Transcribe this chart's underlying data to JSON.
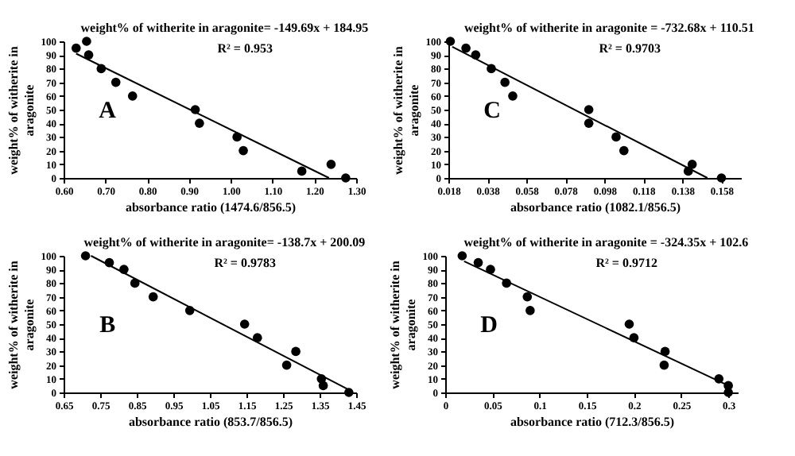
{
  "chart_data": [
    {
      "type": "scatter",
      "xlabel": "absorbance ratio (1474.6/856.5)",
      "ylabel": "weight% of witherite in aragonite",
      "xlim": [
        0.6,
        1.3
      ],
      "xticks": [
        {
          "value": 0.6,
          "label": "0.60"
        },
        {
          "value": 0.7,
          "label": "0.70"
        },
        {
          "value": 0.8,
          "label": "0.80"
        },
        {
          "value": 0.9,
          "label": "0.90"
        },
        {
          "value": 1.0,
          "label": "1.00"
        },
        {
          "value": 1.1,
          "label": "1.10"
        },
        {
          "value": 1.2,
          "label": "1.20"
        },
        {
          "value": 1.3,
          "label": "1.30"
        }
      ],
      "ylim": [
        0,
        100
      ],
      "yticks": [
        0,
        10,
        20,
        30,
        40,
        50,
        60,
        70,
        80,
        90,
        100
      ],
      "annotations": [
        "weight% of witherite in aragonite= -149.69x + 184.95",
        "R² = 0.953",
        "A"
      ],
      "series": [
        {
          "marker": "circle",
          "color": "#000000",
          "x": [
            0.63,
            0.655,
            0.66,
            0.69,
            0.725,
            0.765,
            0.915,
            0.925,
            1.015,
            1.03,
            1.17,
            1.24,
            1.275
          ],
          "values": [
            95,
            100,
            90,
            80,
            70,
            60,
            50,
            40,
            30,
            20,
            5,
            10,
            0
          ]
        },
        {
          "type": "line",
          "marker": "none",
          "color": "#000000",
          "x": [
            0.63,
            1.235
          ],
          "values": [
            91,
            0
          ]
        }
      ]
    },
    {
      "type": "scatter",
      "xlabel": "absorbance ratio (1082.1/856.5)",
      "ylabel": "weight% of witherite in aragonite",
      "xlim": [
        0.018,
        0.168
      ],
      "xticks": [
        0.018,
        0.038,
        0.058,
        0.078,
        0.098,
        0.118,
        0.138,
        0.158
      ],
      "ylim": [
        0,
        100
      ],
      "yticks": [
        0,
        10,
        20,
        30,
        40,
        50,
        60,
        70,
        80,
        90,
        100
      ],
      "annotations": [
        "weight% of witherite in aragonite = -732.68x + 110.51",
        "R² = 0.9703",
        "C"
      ],
      "series": [
        {
          "marker": "circle",
          "color": "#000000",
          "x": [
            0.019,
            0.027,
            0.032,
            0.04,
            0.047,
            0.051,
            0.09,
            0.09,
            0.104,
            0.108,
            0.141,
            0.143,
            0.158
          ],
          "values": [
            100,
            95,
            90,
            80,
            70,
            60,
            50,
            40,
            30,
            20,
            5,
            10,
            0
          ]
        },
        {
          "type": "line",
          "marker": "none",
          "color": "#000000",
          "x": [
            0.02,
            0.1508
          ],
          "values": [
            96,
            0
          ]
        }
      ]
    },
    {
      "type": "scatter",
      "xlabel": "absorbance ratio (853.7/856.5)",
      "ylabel": "weight% of witherite in aragonite",
      "xlim": [
        0.65,
        1.45
      ],
      "xticks": [
        0.65,
        0.75,
        0.85,
        0.95,
        1.05,
        1.15,
        1.25,
        1.35,
        1.45
      ],
      "ylim": [
        0,
        100
      ],
      "yticks": [
        0,
        10,
        20,
        30,
        40,
        50,
        60,
        70,
        80,
        90,
        100
      ],
      "annotations": [
        "weight% of witherite in aragonite= -138.7x + 200.09",
        "R² = 0.9783",
        "B"
      ],
      "series": [
        {
          "marker": "circle",
          "color": "#000000",
          "x": [
            0.71,
            0.775,
            0.815,
            0.845,
            0.895,
            0.995,
            1.145,
            1.18,
            1.26,
            1.285,
            1.355,
            1.36,
            1.43
          ],
          "values": [
            100,
            95,
            90,
            80,
            70,
            60,
            50,
            40,
            20,
            30,
            10,
            5,
            0
          ]
        },
        {
          "type": "line",
          "marker": "none",
          "color": "#000000",
          "x": [
            0.725,
            1.43
          ],
          "values": [
            100,
            2
          ]
        }
      ]
    },
    {
      "type": "scatter",
      "xlabel": "absorbance ratio (712.3/856.5)",
      "ylabel": "weight% of witherite in aragonite",
      "xlim": [
        0,
        0.31
      ],
      "xticks": [
        0,
        0.05,
        0.1,
        0.15,
        0.2,
        0.25,
        0.3
      ],
      "ylim": [
        0,
        100
      ],
      "yticks": [
        0,
        10,
        20,
        30,
        40,
        50,
        60,
        70,
        80,
        90,
        100
      ],
      "annotations": [
        "weight% of witherite in aragonite = -324.35x + 102.6",
        "R² = 0.9712",
        "D"
      ],
      "series": [
        {
          "marker": "circle",
          "color": "#000000",
          "x": [
            0.018,
            0.035,
            0.048,
            0.065,
            0.087,
            0.09,
            0.195,
            0.2,
            0.233,
            0.232,
            0.29,
            0.3,
            0.3
          ],
          "values": [
            100,
            95,
            90,
            80,
            70,
            60,
            50,
            40,
            30,
            20,
            10,
            5,
            0
          ]
        },
        {
          "type": "line",
          "marker": "none",
          "color": "#000000",
          "x": [
            0.02,
            0.3
          ],
          "values": [
            96,
            5
          ]
        }
      ]
    }
  ]
}
